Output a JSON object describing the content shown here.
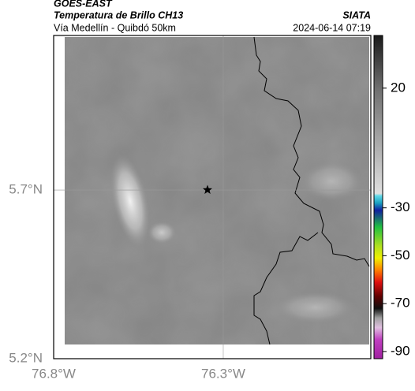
{
  "header": {
    "source": "GOES-EAST",
    "title": "Temperatura de Brillo CH13",
    "agency": "SIATA",
    "subtitle": "Vía Medellín - Quibdó 50km",
    "timestamp": "2024-06-14 07:19"
  },
  "map": {
    "xlim": [
      -76.8,
      -75.865
    ],
    "ylim": [
      5.2,
      6.158
    ],
    "xticks": [
      {
        "value": -76.8,
        "label": "76.8°W"
      },
      {
        "value": -76.3,
        "label": "76.3°W"
      }
    ],
    "yticks": [
      {
        "value": 5.7,
        "label": "5.7°N"
      },
      {
        "value": 5.2,
        "label": "5.2°N"
      }
    ],
    "grid": true
  },
  "colorbar": {
    "lim": [
      -93,
      42
    ],
    "ticks": [
      20,
      -30,
      -50,
      -70,
      -90
    ],
    "stops": [
      {
        "value": 42,
        "color": "#1a1a1a"
      },
      {
        "value": 20,
        "color": "#6e6e6e"
      },
      {
        "value": -24,
        "color": "#e0e0e0"
      },
      {
        "value": -25,
        "color": "#5fd9e8"
      },
      {
        "value": -28,
        "color": "#1aa0c0"
      },
      {
        "value": -31,
        "color": "#1020a0"
      },
      {
        "value": -38,
        "color": "#20c040"
      },
      {
        "value": -46,
        "color": "#b0e020"
      },
      {
        "value": -51,
        "color": "#f0f000"
      },
      {
        "value": -56,
        "color": "#ff8000"
      },
      {
        "value": -61,
        "color": "#e01010"
      },
      {
        "value": -67,
        "color": "#600000"
      },
      {
        "value": -72,
        "color": "#101010"
      },
      {
        "value": -76,
        "color": "#a0a0a0"
      },
      {
        "value": -80,
        "color": "#e0c0e0"
      },
      {
        "value": -85,
        "color": "#c040c0"
      },
      {
        "value": -93,
        "color": "#a020a0"
      }
    ]
  }
}
